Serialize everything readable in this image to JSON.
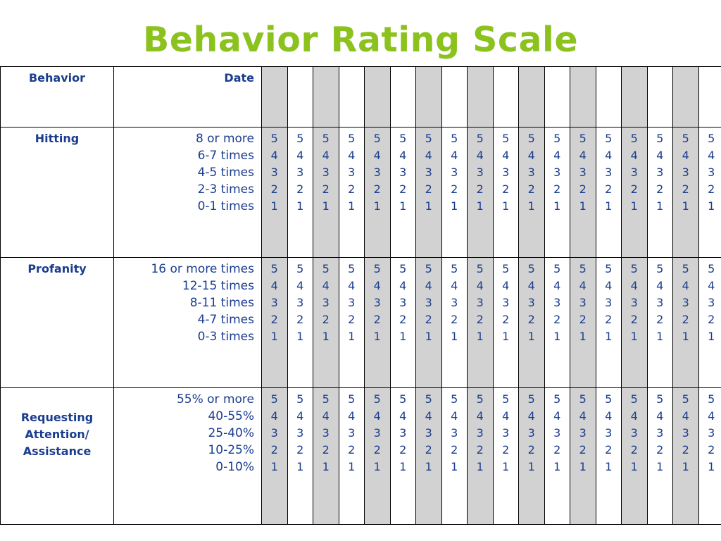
{
  "title": "Behavior Rating Scale",
  "colors": {
    "title": "#8cc21e",
    "text": "#1a3d8f",
    "shaded_column": "#d2d2d2"
  },
  "header": {
    "behavior_label": "Behavior",
    "date_label": "Date"
  },
  "day_columns": 18,
  "rating_values": [
    "5",
    "4",
    "3",
    "2",
    "1"
  ],
  "behaviors": [
    {
      "name": "Hitting",
      "criteria": [
        "8 or more",
        "6-7 times",
        "4-5 times",
        "2-3 times",
        "0-1 times"
      ]
    },
    {
      "name": "Profanity",
      "criteria": [
        "16 or more times",
        "12-15 times",
        "8-11 times",
        "4-7 times",
        "0-3 times"
      ]
    },
    {
      "name": "Requesting Attention/ Assistance",
      "name_lines": [
        "Requesting",
        "Attention/",
        "Assistance"
      ],
      "criteria": [
        "55% or more",
        "40-55%",
        "25-40%",
        "10-25%",
        "0-10%"
      ]
    }
  ]
}
